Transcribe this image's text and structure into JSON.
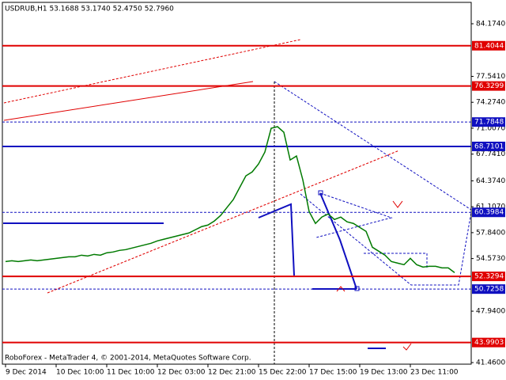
{
  "chart_data": {
    "type": "line",
    "title": "USDRUB,H1  53.1688 53.1740 52.4750 52.7960",
    "footer": "RoboForex - MetaTrader 4, © 2001-2014, MetaQuotes Software Corp.",
    "categories": [
      "9 Dec 2014",
      null,
      null,
      null,
      null,
      null,
      null,
      null,
      "10 Dec 10:00",
      null,
      null,
      null,
      null,
      null,
      null,
      null,
      "11 Dec 10:00",
      null,
      null,
      null,
      null,
      null,
      null,
      null,
      "12 Dec 03:00",
      null,
      null,
      null,
      null,
      null,
      null,
      null,
      "12 Dec 21:00",
      null,
      null,
      null,
      null,
      null,
      null,
      null,
      "15 Dec 22:00",
      null,
      null,
      null,
      null,
      null,
      null,
      null,
      "17 Dec 15:00",
      null,
      null,
      null,
      null,
      null,
      null,
      null,
      "19 Dec 13:00",
      null,
      null,
      null,
      null,
      null,
      null,
      null,
      "23 Dec 11:00",
      null,
      null,
      null,
      null,
      null,
      null,
      null
    ],
    "series": [
      {
        "color": "#007a00",
        "values": [
          54.2,
          54.3,
          54.2,
          54.3,
          54.4,
          54.3,
          54.4,
          54.5,
          54.6,
          54.7,
          54.8,
          54.8,
          55.0,
          54.9,
          55.1,
          55.0,
          55.3,
          55.4,
          55.6,
          55.7,
          55.9,
          56.1,
          56.3,
          56.5,
          56.8,
          57.0,
          57.2,
          57.4,
          57.6,
          57.8,
          58.2,
          58.6,
          58.8,
          59.3,
          60.0,
          61.0,
          62.0,
          63.5,
          65.0,
          65.5,
          66.5,
          68.0,
          71.0,
          71.2,
          70.5,
          67.0,
          67.5,
          64.5,
          60.5,
          59.0,
          59.8,
          60.2,
          59.5,
          59.8,
          59.2,
          59.0,
          58.5,
          58.0,
          56.0,
          55.5,
          55.0,
          54.2,
          54.0,
          53.8,
          54.6,
          53.8,
          53.5,
          53.6,
          53.6,
          53.4,
          53.4,
          52.8
        ]
      }
    ],
    "ylim": [
      41.26,
      86.87
    ],
    "yticks": [
      {
        "value": 84.174,
        "label": "84.1740"
      },
      {
        "value": 77.541,
        "label": "77.5410"
      },
      {
        "value": 74.274,
        "label": "74.2740"
      },
      {
        "value": 71.007,
        "label": "71.0070"
      },
      {
        "value": 67.741,
        "label": "67.7410"
      },
      {
        "value": 64.374,
        "label": "64.3740"
      },
      {
        "value": 61.107,
        "label": "61.1070"
      },
      {
        "value": 57.84,
        "label": "57.8400"
      },
      {
        "value": 54.573,
        "label": "54.5730"
      },
      {
        "value": 47.94,
        "label": "47.9400"
      },
      {
        "value": 41.46,
        "label": "41.4600"
      }
    ],
    "levels": [
      {
        "value": 81.4044,
        "color": "#e00000",
        "dashed": false
      },
      {
        "value": 76.3299,
        "color": "#e00000",
        "dashed": false
      },
      {
        "value": 71.7848,
        "color": "#1010c0",
        "dashed": true
      },
      {
        "value": 68.7101,
        "color": "#1010c0",
        "dashed": false
      },
      {
        "value": 60.3984,
        "color": "#1010c0",
        "dashed": true
      },
      {
        "value": 52.3294,
        "color": "#e00000",
        "dashed": false
      },
      {
        "value": 50.7258,
        "color": "#1010c0",
        "dashed": true
      },
      {
        "value": 43.9903,
        "color": "#e00000",
        "dashed": false
      }
    ]
  }
}
